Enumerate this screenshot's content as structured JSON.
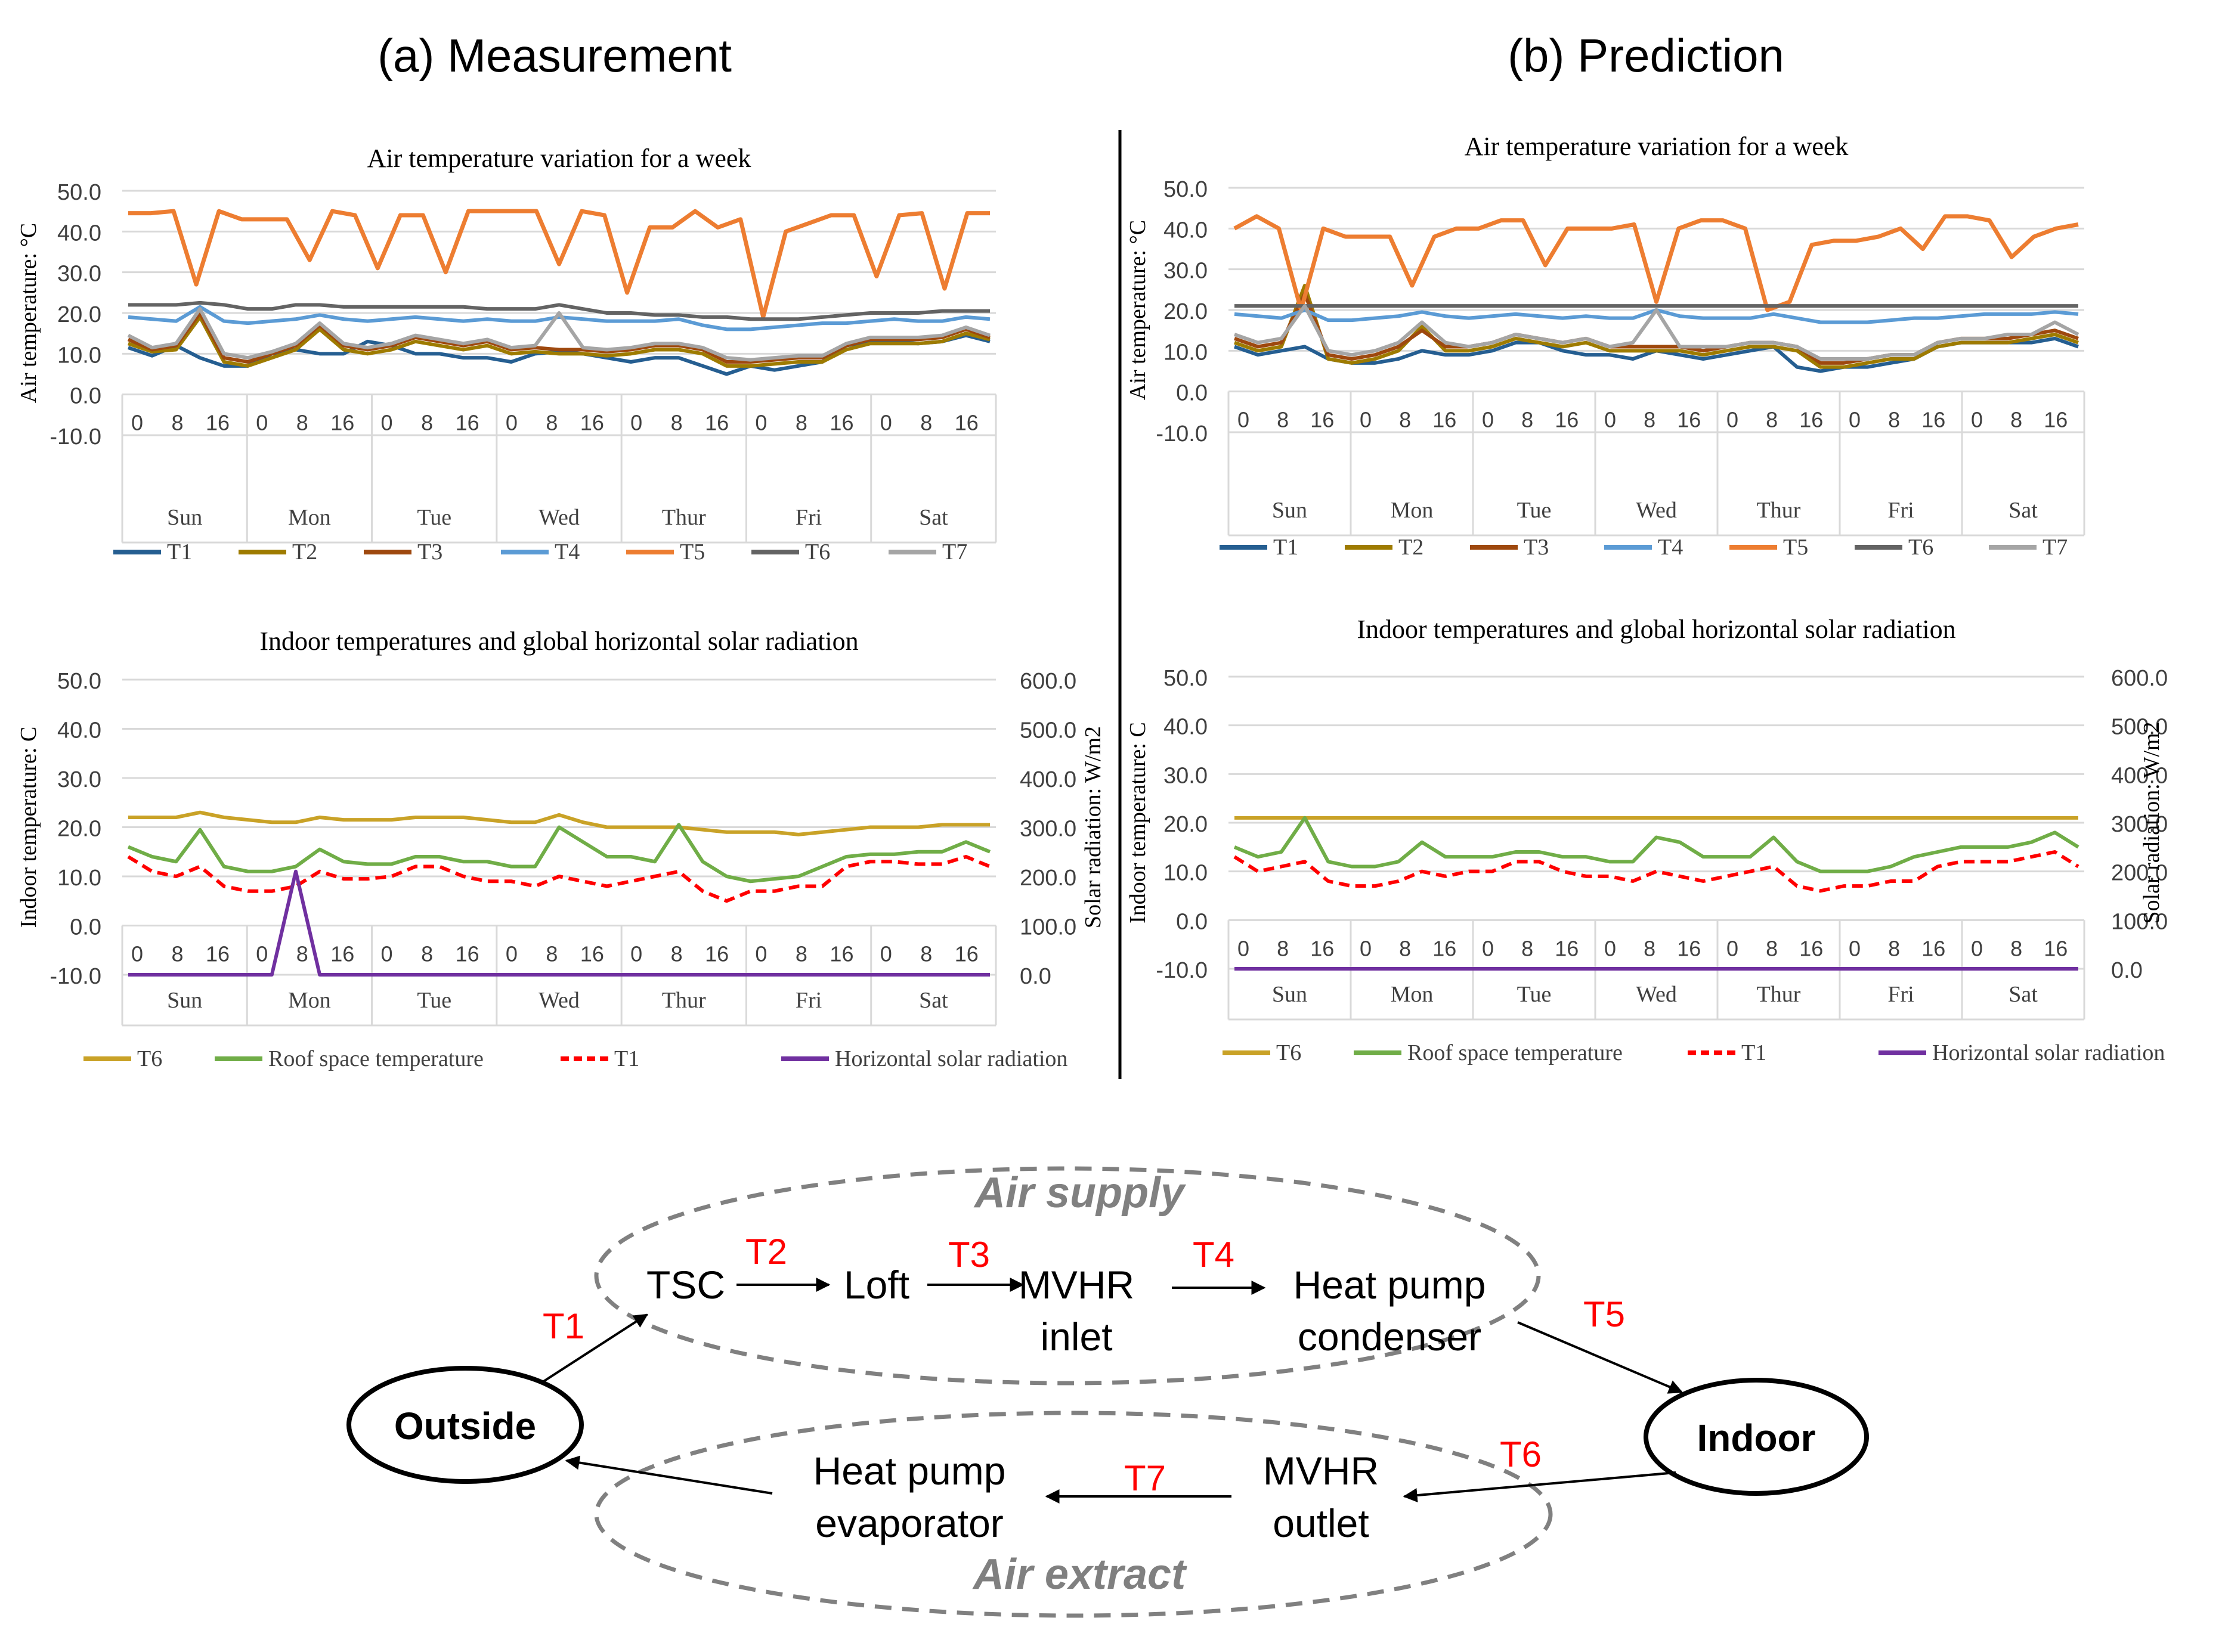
{
  "panel_titles": {
    "a": "(a) Measurement",
    "b": "(b) Prediction"
  },
  "colors": {
    "T1": "#255E91",
    "T2": "#9E7B00",
    "T3": "#9E480E",
    "T4": "#5B9BD5",
    "T5": "#ED7D31",
    "T6": "#636363",
    "T7": "#A5A5A5",
    "T6_indoor": "#C9A227",
    "roof": "#70AD47",
    "T1_indoor": "#FF0000",
    "solar": "#7030A0",
    "grid": "#D9D9D9",
    "axis_text": "#404040",
    "label_red": "#FF0000"
  },
  "chart_data": [
    {
      "id": "meas_air",
      "type": "line",
      "title": "Air temperature  variation  for a week",
      "ylabel": "Air temperature:  °C",
      "ylim": [
        -10,
        50
      ],
      "yticks": [
        "50.0",
        "40.0",
        "30.0",
        "20.0",
        "10.0",
        "0.0",
        "-10.0"
      ],
      "hour_ticks": [
        "0",
        "8",
        "16"
      ],
      "days": [
        "Sun",
        "Mon",
        "Tue",
        "Wed",
        "Thur",
        "Fri",
        "Sat"
      ],
      "legend_position": "bottom",
      "series": [
        {
          "name": "T1",
          "key": "T1",
          "y": [
            11.5,
            9.5,
            12,
            9,
            7,
            7,
            10,
            11,
            10,
            10,
            13,
            12,
            10,
            10,
            9,
            9,
            8,
            10,
            10.5,
            10,
            9,
            8,
            9,
            9,
            7,
            5,
            7,
            6,
            7,
            8,
            12,
            13,
            13,
            12.5,
            13,
            14.5,
            13
          ]
        },
        {
          "name": "T2",
          "key": "T2",
          "y": [
            12.5,
            10.5,
            11,
            19,
            8,
            7,
            9,
            11,
            16,
            11,
            10,
            11,
            13,
            12,
            11,
            12,
            10,
            10.5,
            10,
            10,
            9.5,
            10,
            11,
            11,
            10,
            7,
            7,
            7.5,
            8,
            8,
            11,
            12.5,
            12.5,
            12.5,
            13,
            15,
            13.5
          ]
        },
        {
          "name": "T3",
          "key": "T3",
          "y": [
            13.5,
            11,
            12,
            20,
            9,
            8,
            10,
            12,
            17,
            12,
            11,
            12,
            14,
            13,
            12,
            13,
            11,
            11.5,
            11,
            11,
            10.5,
            11,
            12,
            12,
            11,
            8,
            8,
            8.5,
            9,
            9,
            12,
            13.5,
            13.5,
            13.5,
            14,
            16,
            14
          ]
        },
        {
          "name": "T4",
          "key": "T4",
          "y": [
            19,
            18.5,
            18,
            21.5,
            18,
            17.5,
            18,
            18.5,
            19.5,
            18.5,
            18,
            18.5,
            19,
            18.5,
            18,
            18.5,
            18,
            18,
            19,
            18.5,
            18,
            18,
            18,
            18.5,
            17,
            16,
            16,
            16.5,
            17,
            17.5,
            17.5,
            18,
            18.5,
            18,
            18,
            19,
            18.5
          ]
        },
        {
          "name": "T5",
          "key": "T5",
          "y": [
            44.5,
            44.5,
            45,
            27,
            45,
            43,
            43,
            43,
            33,
            45,
            44,
            31,
            44,
            44,
            30,
            45,
            45,
            45,
            45,
            32,
            45,
            44,
            25,
            41,
            41,
            45,
            41,
            43,
            19,
            40,
            42,
            44,
            44,
            29,
            44,
            44.5,
            26,
            44.5,
            44.5
          ]
        },
        {
          "name": "T6",
          "key": "T6",
          "y": [
            22,
            22,
            22,
            22.5,
            22,
            21,
            21,
            22,
            22,
            21.5,
            21.5,
            21.5,
            21.5,
            21.5,
            21.5,
            21,
            21,
            21,
            22,
            21,
            20,
            20,
            19.5,
            19.5,
            19,
            19,
            18.5,
            18.5,
            18.5,
            19,
            19.5,
            20,
            20,
            20,
            20.5,
            20.5,
            20.5
          ]
        },
        {
          "name": "T7",
          "key": "T7",
          "y": [
            14.5,
            11.5,
            12.5,
            21,
            10,
            9,
            10.5,
            12.5,
            17.5,
            12.5,
            11.5,
            12.5,
            14.5,
            13.5,
            12.5,
            13.5,
            11.5,
            12,
            20,
            11.5,
            11,
            11.5,
            12.5,
            12.5,
            11.5,
            9,
            8.5,
            9,
            9.5,
            9.5,
            12.5,
            14,
            14,
            14,
            14.5,
            16.5,
            14.5
          ]
        }
      ]
    },
    {
      "id": "meas_indoor",
      "type": "line",
      "title": "Indoor temperatures  and global horizontal  solar radiation",
      "ylabel": "Indoor temperature:  C",
      "ylabel_right": "Solar radiation:  W/m2",
      "ylim": [
        -10,
        50
      ],
      "ylim_right": [
        0,
        600
      ],
      "yticks": [
        "50.0",
        "40.0",
        "30.0",
        "20.0",
        "10.0",
        "0.0",
        "-10.0"
      ],
      "yticks_right": [
        "600.0",
        "500.0",
        "400.0",
        "300.0",
        "200.0",
        "100.0",
        "0.0"
      ],
      "hour_ticks": [
        "0",
        "8",
        "16"
      ],
      "days": [
        "Sun",
        "Mon",
        "Tue",
        "Wed",
        "Thur",
        "Fri",
        "Sat"
      ],
      "legend_position": "bottom",
      "series": [
        {
          "name": "T6",
          "key": "T6_indoor",
          "axis": "left",
          "dash": false,
          "y": [
            22,
            22,
            22,
            23,
            22,
            21.5,
            21,
            21,
            22,
            21.5,
            21.5,
            21.5,
            22,
            22,
            22,
            21.5,
            21,
            21,
            22.5,
            21,
            20,
            20,
            20,
            20,
            19.5,
            19,
            19,
            19,
            18.5,
            19,
            19.5,
            20,
            20,
            20,
            20.5,
            20.5,
            20.5
          ]
        },
        {
          "name": "Roof space temperature",
          "key": "roof",
          "axis": "left",
          "dash": false,
          "y": [
            16,
            14,
            13,
            19.5,
            12,
            11,
            11,
            12,
            15.5,
            13,
            12.5,
            12.5,
            14,
            14,
            13,
            13,
            12,
            12,
            20,
            17,
            14,
            14,
            13,
            20.5,
            13,
            10,
            9,
            9.5,
            10,
            12,
            14,
            14.5,
            14.5,
            15,
            15,
            17,
            15
          ]
        },
        {
          "name": "T1",
          "key": "T1_indoor",
          "axis": "left",
          "dash": true,
          "y": [
            14,
            11,
            10,
            12,
            8,
            7,
            7,
            8,
            11,
            9.5,
            9.5,
            10,
            12,
            12,
            10,
            9,
            9,
            8,
            10,
            9,
            8,
            9,
            10,
            11,
            7,
            5,
            7,
            7,
            8,
            8,
            12,
            13,
            13,
            12.5,
            12.5,
            14,
            12
          ]
        },
        {
          "name": "Horizontal solar radiation",
          "key": "solar",
          "axis": "right",
          "dash": false,
          "y": [
            0,
            0,
            0,
            0,
            0,
            0,
            0,
            210,
            0,
            0,
            0,
            0,
            0,
            0,
            0,
            0,
            0,
            0,
            0,
            0,
            0,
            0,
            0,
            0,
            0,
            0,
            0,
            0,
            0,
            0,
            0,
            0,
            0,
            0,
            0,
            0,
            0
          ]
        }
      ]
    },
    {
      "id": "pred_air",
      "type": "line",
      "title": "Air temperature  variation  for a week",
      "ylabel": "Air temperature:  °C",
      "ylim": [
        -10,
        50
      ],
      "yticks": [
        "50.0",
        "40.0",
        "30.0",
        "20.0",
        "10.0",
        "0.0",
        "-10.0"
      ],
      "hour_ticks": [
        "0",
        "8",
        "16"
      ],
      "days": [
        "Sun",
        "Mon",
        "Tue",
        "Wed",
        "Thur",
        "Fri",
        "Sat"
      ],
      "legend_position": "bottom",
      "series": [
        {
          "name": "T1",
          "key": "T1",
          "y": [
            11,
            9,
            10,
            11,
            8,
            7,
            7,
            8,
            10,
            9,
            9,
            10,
            12,
            12,
            10,
            9,
            9,
            8,
            10,
            9,
            8,
            9,
            10,
            11,
            6,
            5,
            6,
            6,
            7,
            8,
            11,
            12,
            12,
            12,
            12,
            13,
            11
          ]
        },
        {
          "name": "T2",
          "key": "T2",
          "y": [
            12,
            10,
            11,
            26,
            8,
            7,
            8,
            10,
            16,
            10,
            10,
            11,
            13,
            12,
            11,
            12,
            10,
            10,
            10,
            10,
            9,
            10,
            11,
            11,
            10,
            6,
            6,
            7,
            8,
            8,
            11,
            12,
            12,
            12,
            13,
            14,
            12
          ]
        },
        {
          "name": "T3",
          "key": "T3",
          "y": [
            13,
            11,
            12,
            24,
            9,
            8,
            9,
            11,
            15,
            11,
            11,
            12,
            14,
            13,
            12,
            13,
            11,
            11,
            11,
            11,
            10,
            11,
            12,
            12,
            11,
            7,
            7,
            8,
            9,
            9,
            12,
            13,
            13,
            13,
            14,
            15,
            13
          ]
        },
        {
          "name": "T4",
          "key": "T4",
          "y": [
            19,
            18.5,
            18,
            20,
            17.5,
            17.5,
            18,
            18.5,
            19.5,
            18.5,
            18,
            18.5,
            19,
            18.5,
            18,
            18.5,
            18,
            18,
            20,
            18.5,
            18,
            18,
            18,
            19,
            18,
            17,
            17,
            17,
            17.5,
            18,
            18,
            18.5,
            19,
            19,
            19,
            19.5,
            19
          ]
        },
        {
          "name": "T5",
          "key": "T5",
          "y": [
            40,
            43,
            40,
            20,
            40,
            38,
            38,
            38,
            26,
            38,
            40,
            40,
            42,
            42,
            31,
            40,
            40,
            40,
            41,
            22,
            40,
            42,
            42,
            40,
            20,
            22,
            36,
            37,
            37,
            38,
            40,
            35,
            43,
            43,
            42,
            33,
            38,
            40,
            41
          ]
        },
        {
          "name": "T6",
          "key": "T6",
          "y": [
            21,
            21,
            21,
            21,
            21,
            21,
            21,
            21,
            21,
            21,
            21,
            21,
            21,
            21,
            21,
            21,
            21,
            21,
            21,
            21,
            21,
            21,
            21,
            21,
            21,
            21,
            21,
            21,
            21,
            21,
            21,
            21,
            21,
            21,
            21,
            21,
            21
          ]
        },
        {
          "name": "T7",
          "key": "T7",
          "y": [
            14,
            12,
            13,
            21,
            10,
            9,
            10,
            12,
            17,
            12,
            11,
            12,
            14,
            13,
            12,
            13,
            11,
            12,
            20,
            11,
            11,
            11,
            12,
            12,
            11,
            8,
            8,
            8,
            9,
            9,
            12,
            13,
            13,
            14,
            14,
            17,
            14
          ]
        }
      ]
    },
    {
      "id": "pred_indoor",
      "type": "line",
      "title": "Indoor temperatures  and global horizontal  solar radiation",
      "ylabel": "Indoor temperature:  C",
      "ylabel_right": "Solar radiation:  W/m2",
      "ylim": [
        -10,
        50
      ],
      "ylim_right": [
        0,
        600
      ],
      "yticks": [
        "50.0",
        "40.0",
        "30.0",
        "20.0",
        "10.0",
        "0.0",
        "-10.0"
      ],
      "yticks_right": [
        "600.0",
        "500.0",
        "400.0",
        "300.0",
        "200.0",
        "100.0",
        "0.0"
      ],
      "hour_ticks": [
        "0",
        "8",
        "16"
      ],
      "days": [
        "Sun",
        "Mon",
        "Tue",
        "Wed",
        "Thur",
        "Fri",
        "Sat"
      ],
      "legend_position": "bottom",
      "series": [
        {
          "name": "T6",
          "key": "T6_indoor",
          "axis": "left",
          "dash": false,
          "y": [
            21,
            21,
            21,
            21,
            21,
            21,
            21,
            21,
            21,
            21,
            21,
            21,
            21,
            21,
            21,
            21,
            21,
            21,
            21,
            21,
            21,
            21,
            21,
            21,
            21,
            21,
            21,
            21,
            21,
            21,
            21,
            21,
            21,
            21,
            21,
            21,
            21
          ]
        },
        {
          "name": "Roof space temperature",
          "key": "roof",
          "axis": "left",
          "dash": false,
          "y": [
            15,
            13,
            14,
            21,
            12,
            11,
            11,
            12,
            16,
            13,
            13,
            13,
            14,
            14,
            13,
            13,
            12,
            12,
            17,
            16,
            13,
            13,
            13,
            17,
            12,
            10,
            10,
            10,
            11,
            13,
            14,
            15,
            15,
            15,
            16,
            18,
            15
          ]
        },
        {
          "name": "T1",
          "key": "T1_indoor",
          "axis": "left",
          "dash": true,
          "y": [
            13,
            10,
            11,
            12,
            8,
            7,
            7,
            8,
            10,
            9,
            10,
            10,
            12,
            12,
            10,
            9,
            9,
            8,
            10,
            9,
            8,
            9,
            10,
            11,
            7,
            6,
            7,
            7,
            8,
            8,
            11,
            12,
            12,
            12,
            13,
            14,
            11
          ]
        },
        {
          "name": "Horizontal solar radiation",
          "key": "solar",
          "axis": "right",
          "dash": false,
          "y": [
            0,
            0,
            0,
            0,
            0,
            0,
            0,
            0,
            0,
            0,
            0,
            0,
            0,
            0,
            0,
            0,
            0,
            0,
            0,
            0,
            0,
            0,
            0,
            0,
            0,
            0,
            0,
            0,
            0,
            0,
            0,
            0,
            0,
            0,
            0,
            0,
            0
          ]
        }
      ]
    }
  ],
  "diagram": {
    "nodes": {
      "outside": "Outside",
      "indoor": "Indoor",
      "tsc": "TSC",
      "loft": "Loft",
      "mvhr_inlet_1": "MVHR",
      "mvhr_inlet_2": "inlet",
      "hp_cond_1": "Heat pump",
      "hp_cond_2": "condenser",
      "mvhr_outlet_1": "MVHR",
      "mvhr_outlet_2": "outlet",
      "hp_evap_1": "Heat pump",
      "hp_evap_2": "evaporator"
    },
    "groups": {
      "supply": "Air supply",
      "extract": "Air extract"
    },
    "labels": {
      "T1": "T1",
      "T2": "T2",
      "T3": "T3",
      "T4": "T4",
      "T5": "T5",
      "T6": "T6",
      "T7": "T7"
    }
  }
}
